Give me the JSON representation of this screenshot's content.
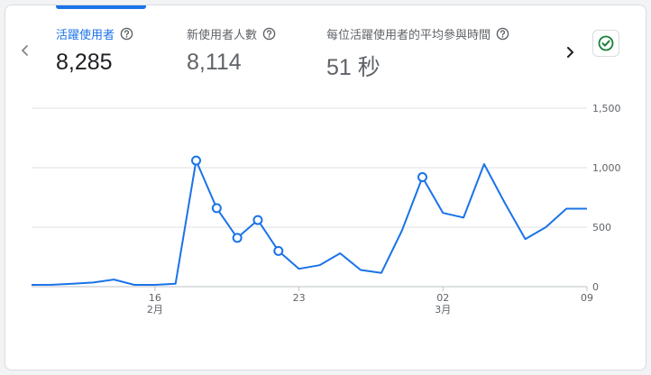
{
  "metrics": [
    {
      "label": "活躍使用者",
      "value": "8,285",
      "active": true
    },
    {
      "label": "新使用者人數",
      "value": "8,114",
      "active": false
    },
    {
      "label": "每位活躍使用者的平均參與時間",
      "value": "51 秒",
      "active": false
    }
  ],
  "icons": {
    "prev": "chevron-left-icon",
    "next": "chevron-right-icon",
    "help": "help-circle-icon",
    "status": "check-circle-icon"
  },
  "colors": {
    "accent": "#1a73e8",
    "line": "#1a73e8",
    "status": "#188038",
    "grid": "#e0e0e0"
  },
  "chart_data": {
    "type": "line",
    "x": [
      1,
      2,
      3,
      4,
      5,
      6,
      7,
      8,
      9,
      10,
      11,
      12,
      13,
      14,
      15,
      16,
      17,
      18,
      19,
      20,
      21,
      22,
      23,
      24,
      25,
      26,
      27,
      28
    ],
    "series": [
      {
        "values": [
          15,
          16,
          25,
          35,
          60,
          15,
          15,
          25,
          1060,
          660,
          410,
          560,
          300,
          150,
          180,
          280,
          140,
          115,
          470,
          920,
          620,
          580,
          1030,
          705,
          400,
          500,
          655,
          655
        ],
        "highlighted_points": [
          8,
          9,
          10,
          11,
          12,
          19
        ]
      }
    ],
    "ylim": [
      0,
      1500
    ],
    "yticks": [
      "0",
      "500",
      "1,000",
      "1,500"
    ],
    "y_tick_values": [
      0,
      500,
      1000,
      1500
    ],
    "xticks": [
      {
        "index": 7,
        "day": "16",
        "month": "2月"
      },
      {
        "index": 14,
        "day": "23",
        "month": ""
      },
      {
        "index": 21,
        "day": "02",
        "month": "3月"
      },
      {
        "index": 28,
        "day": "09",
        "month": ""
      }
    ],
    "grid": true,
    "yaxis_side": "right"
  }
}
